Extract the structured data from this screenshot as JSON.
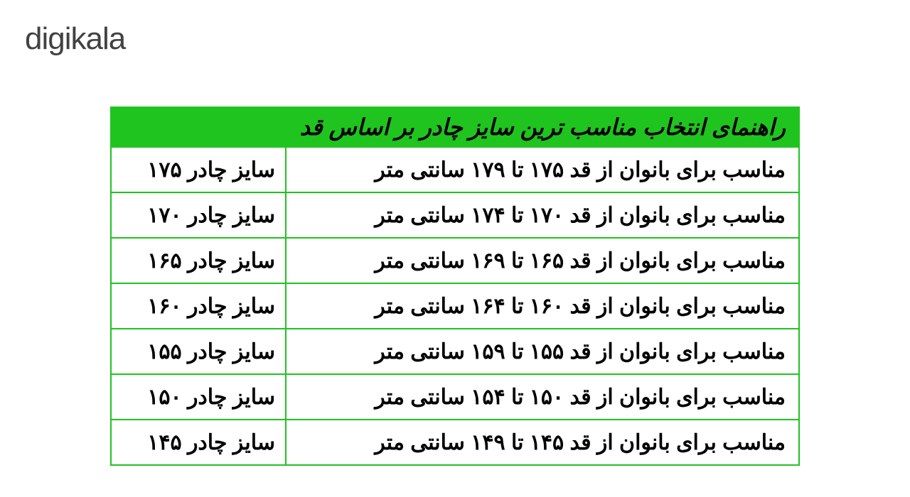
{
  "logo": {
    "text": "digikala",
    "text_color": "#424242",
    "dot_color": "#ee384e",
    "fontsize": 44
  },
  "table": {
    "type": "table",
    "header": "راهنمای انتخاب مناسب ترین سایز چادر بر اساس قد",
    "header_bg": "#1fc41f",
    "header_text_color": "#000000",
    "header_fontsize": 32,
    "border_color": "#1fc41f",
    "cell_fontsize": 30,
    "cell_text_color": "#000000",
    "background_color": "#ffffff",
    "columns": [
      "description",
      "size"
    ],
    "rows": [
      {
        "desc": "مناسب برای بانوان از قد ۱۷۵ تا ۱۷۹ سانتی متر",
        "size": "سایز چادر ۱۷۵"
      },
      {
        "desc": "مناسب برای بانوان از قد ۱۷۰ تا ۱۷۴ سانتی متر",
        "size": "سایز چادر ۱۷۰"
      },
      {
        "desc": "مناسب برای بانوان از قد ۱۶۵ تا ۱۶۹ سانتی متر",
        "size": "سایز چادر ۱۶۵"
      },
      {
        "desc": "مناسب برای بانوان از قد ۱۶۰ تا ۱۶۴ سانتی متر",
        "size": "سایز چادر ۱۶۰"
      },
      {
        "desc": "مناسب برای بانوان از قد ۱۵۵ تا ۱۵۹ سانتی متر",
        "size": "سایز چادر ۱۵۵"
      },
      {
        "desc": "مناسب برای بانوان از قد ۱۵۰ تا ۱۵۴ سانتی متر",
        "size": "سایز چادر ۱۵۰"
      },
      {
        "desc": "مناسب برای بانوان از قد ۱۴۵ تا ۱۴۹ سانتی متر",
        "size": "سایز چادر ۱۴۵"
      }
    ]
  }
}
